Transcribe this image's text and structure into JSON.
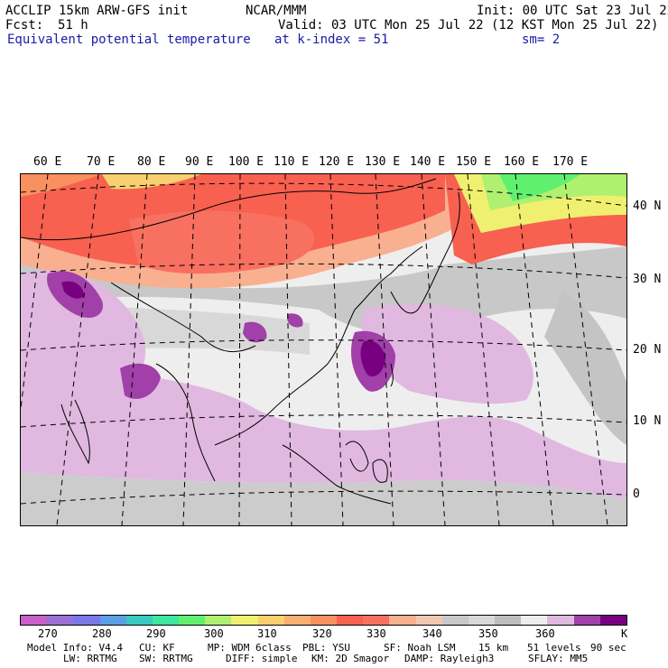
{
  "header": {
    "model": "ACCLIP 15km ARW-GFS init",
    "org": "NCAR/MMM",
    "init": "Init: 00 UTC Sat 23 Jul 22",
    "fcst_label": "Fcst:",
    "fcst_value": "51 h",
    "valid": "Valid: 03 UTC Mon 25 Jul 22 (12 KST Mon 25 Jul 22)",
    "field": "Equivalent potential temperature",
    "level": "at k-index =  51",
    "smooth": "sm= 2"
  },
  "map": {
    "lon_labels": [
      "60 E",
      "70 E",
      "80 E",
      "90 E",
      "100 E",
      "110 E",
      "120 E",
      "130 E",
      "140 E",
      "150 E",
      "160 E",
      "170 E"
    ],
    "lat_labels": [
      "40 N",
      "30 N",
      "20 N",
      "10 N",
      "0"
    ]
  },
  "colorbar": {
    "unit": "K",
    "ticks": [
      "270",
      "280",
      "290",
      "300",
      "310",
      "320",
      "330",
      "340",
      "350",
      "360"
    ],
    "colors": [
      "#c860c8",
      "#9a70d6",
      "#7a78e6",
      "#5aa0e6",
      "#3ac8c0",
      "#3ee6a0",
      "#60f070",
      "#b0f070",
      "#f0f070",
      "#f8d070",
      "#f8b070",
      "#f89060",
      "#f86050",
      "#f87060",
      "#f8b090",
      "#f0c8b0",
      "#c8c8c8",
      "#d8d8d8",
      "#bebebe",
      "#eeeeee",
      "#e0b8e0",
      "#a040a8",
      "#780080"
    ]
  },
  "footer": {
    "line1": [
      "Model Info: V4.4",
      "CU: KF",
      "MP: WDM 6class",
      "PBL: YSU",
      "SF: Noah LSM",
      "15 km",
      "51 levels",
      "90 sec"
    ],
    "line2": [
      "LW: RRTMG",
      "SW: RRTMG",
      "DIFF: simple",
      "KM: 2D Smagor",
      "DAMP: Rayleigh3",
      "SFLAY: MM5"
    ]
  }
}
